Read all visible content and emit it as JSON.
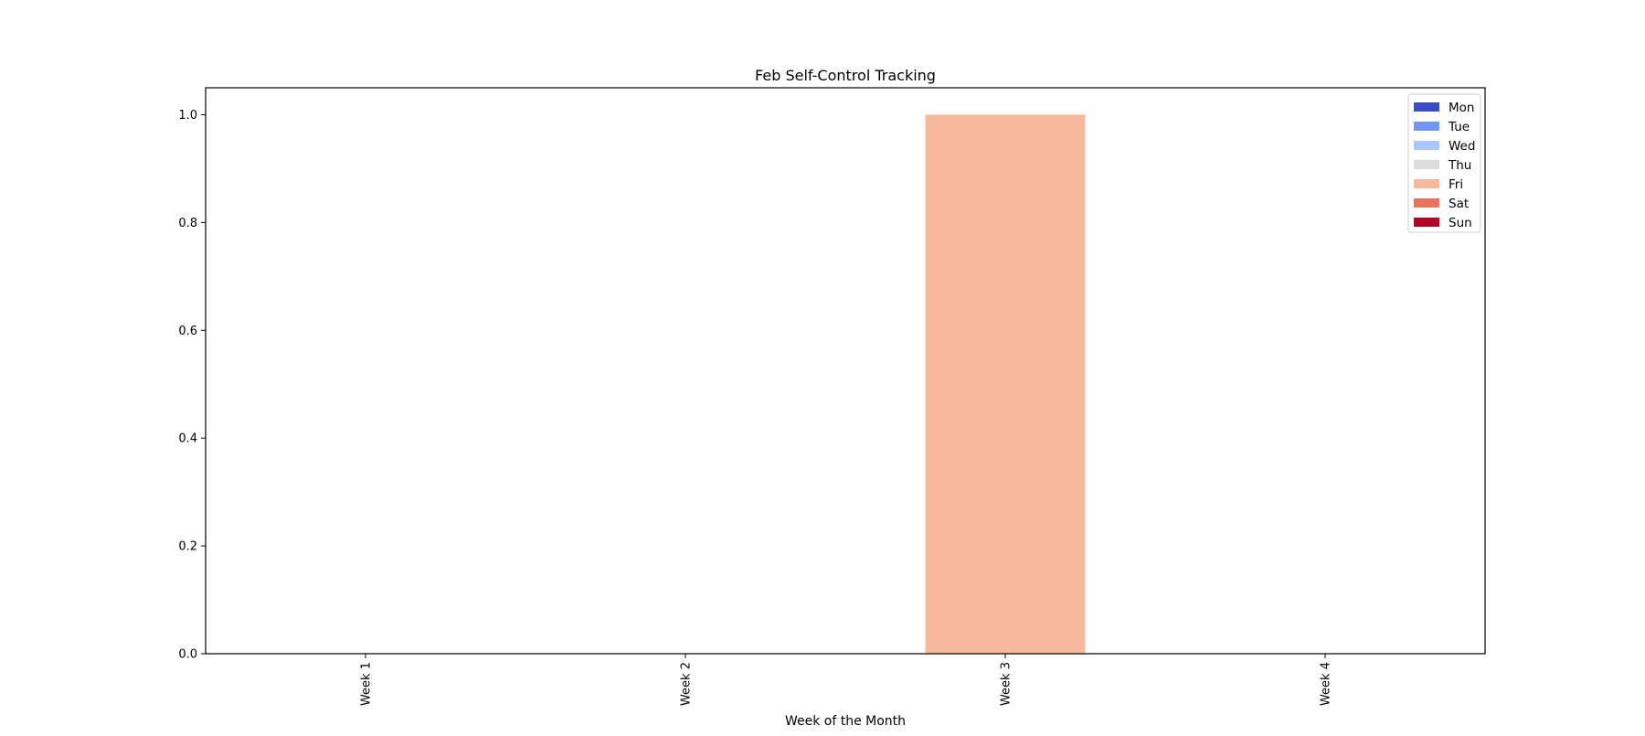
{
  "chart_data": {
    "type": "bar",
    "stacked": true,
    "title": "Feb Self-Control Tracking",
    "xlabel": "Week of the Month",
    "ylabel": "",
    "categories": [
      "Week 1",
      "Week 2",
      "Week 3",
      "Week 4"
    ],
    "ylim": [
      0,
      1.05
    ],
    "yticks": [
      "0.0",
      "0.2",
      "0.4",
      "0.6",
      "0.8",
      "1.0"
    ],
    "grid": false,
    "legend_position": "top-right",
    "series": [
      {
        "name": "Mon",
        "color": "#3b4cc0",
        "values": [
          0,
          0,
          0,
          0
        ]
      },
      {
        "name": "Tue",
        "color": "#7396f5",
        "values": [
          0,
          0,
          0,
          0
        ]
      },
      {
        "name": "Wed",
        "color": "#aac7fd",
        "values": [
          0,
          0,
          0,
          0
        ]
      },
      {
        "name": "Thu",
        "color": "#dddcdc",
        "values": [
          0,
          0,
          0,
          0
        ]
      },
      {
        "name": "Fri",
        "color": "#f7b89c",
        "values": [
          0,
          0,
          1,
          0
        ]
      },
      {
        "name": "Sat",
        "color": "#e7745b",
        "values": [
          0,
          0,
          0,
          0
        ]
      },
      {
        "name": "Sun",
        "color": "#b40426",
        "values": [
          0,
          0,
          0,
          0
        ]
      }
    ]
  }
}
